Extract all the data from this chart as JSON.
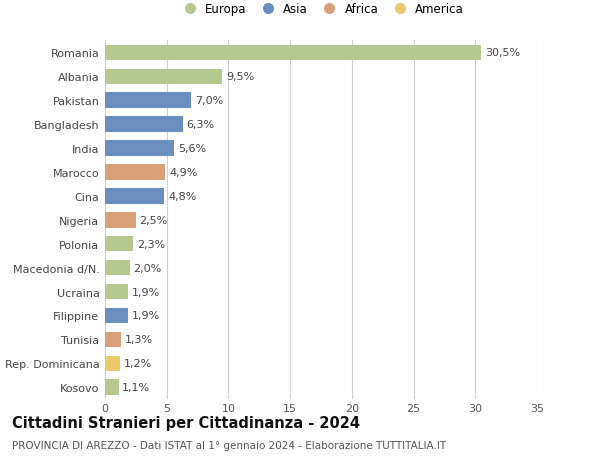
{
  "countries": [
    "Romania",
    "Albania",
    "Pakistan",
    "Bangladesh",
    "India",
    "Marocco",
    "Cina",
    "Nigeria",
    "Polonia",
    "Macedonia d/N.",
    "Ucraina",
    "Filippine",
    "Tunisia",
    "Rep. Dominicana",
    "Kosovo"
  ],
  "values": [
    30.5,
    9.5,
    7.0,
    6.3,
    5.6,
    4.9,
    4.8,
    2.5,
    2.3,
    2.0,
    1.9,
    1.9,
    1.3,
    1.2,
    1.1
  ],
  "labels": [
    "30,5%",
    "9,5%",
    "7,0%",
    "6,3%",
    "5,6%",
    "4,9%",
    "4,8%",
    "2,5%",
    "2,3%",
    "2,0%",
    "1,9%",
    "1,9%",
    "1,3%",
    "1,2%",
    "1,1%"
  ],
  "colors": [
    "#b5c98e",
    "#b5c98e",
    "#6b8ebf",
    "#6b8ebf",
    "#6b8ebf",
    "#d9a07a",
    "#6b8ebf",
    "#d9a07a",
    "#b5c98e",
    "#b5c98e",
    "#b5c98e",
    "#6b8ebf",
    "#d9a07a",
    "#e8c96e",
    "#b5c98e"
  ],
  "legend_labels": [
    "Europa",
    "Asia",
    "Africa",
    "America"
  ],
  "legend_colors": [
    "#b5c98e",
    "#6b8ebf",
    "#d9a07a",
    "#e8c96e"
  ],
  "title": "Cittadini Stranieri per Cittadinanza - 2024",
  "subtitle": "PROVINCIA DI AREZZO - Dati ISTAT al 1° gennaio 2024 - Elaborazione TUTTITALIA.IT",
  "xlim": [
    0,
    35
  ],
  "xticks": [
    0,
    5,
    10,
    15,
    20,
    25,
    30,
    35
  ],
  "bg_color": "#ffffff",
  "grid_color": "#d0d0d0",
  "bar_height": 0.65,
  "label_fontsize": 8,
  "tick_fontsize": 8,
  "title_fontsize": 10.5,
  "subtitle_fontsize": 7.5
}
